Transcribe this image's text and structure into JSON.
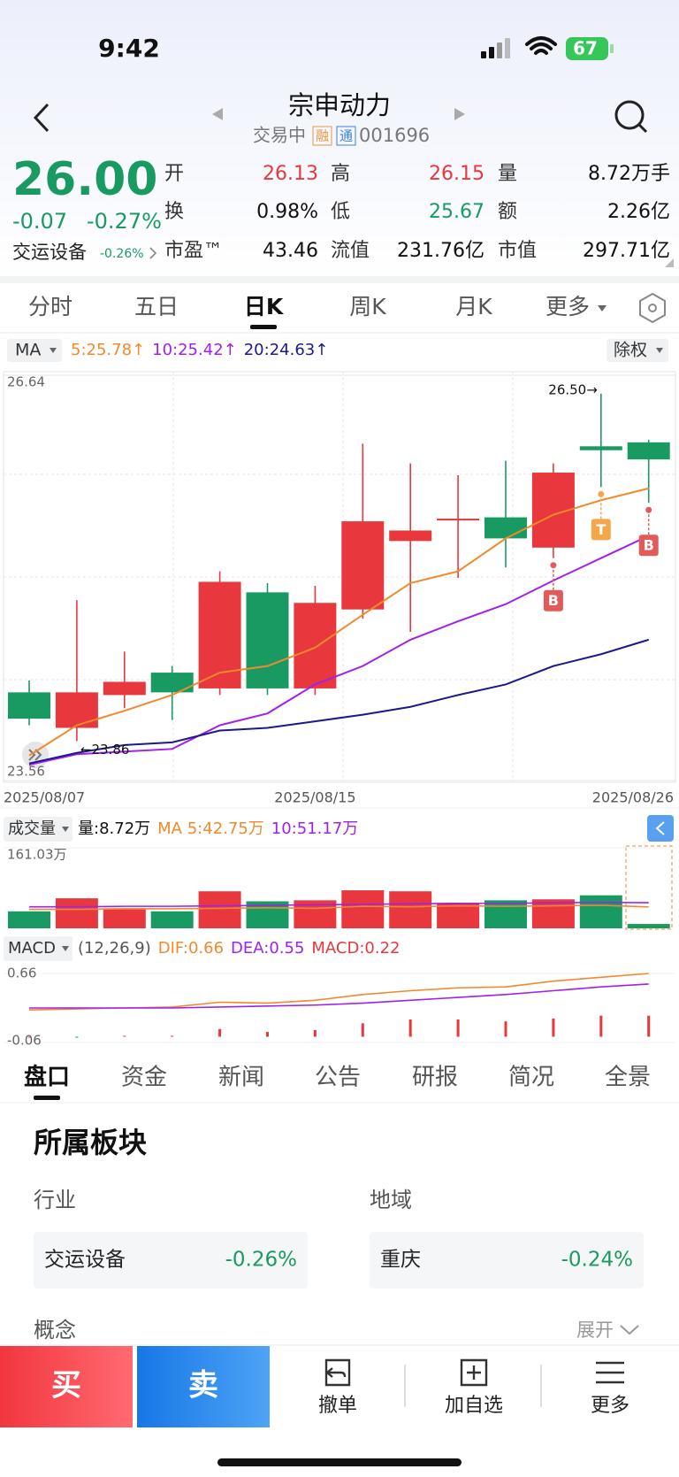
{
  "status_bar": {
    "time": "9:42",
    "battery": "67"
  },
  "header": {
    "title": "宗申动力",
    "state": "交易中",
    "tags": [
      "融",
      "通"
    ],
    "code": "001696"
  },
  "quote": {
    "price": "26.00",
    "change": "-0.07",
    "change_percent": "-0.27%",
    "sector": "交运设备",
    "sector_change": "-0.26%",
    "stats": [
      {
        "label": "开",
        "value": "26.13",
        "color": "#e8383d"
      },
      {
        "label": "高",
        "value": "26.15",
        "color": "#e8383d"
      },
      {
        "label": "量",
        "value": "8.72万手"
      },
      {
        "label": "换",
        "value": "0.98%"
      },
      {
        "label": "低",
        "value": "25.67",
        "color": "#1a9a63"
      },
      {
        "label": "额",
        "value": "2.26亿"
      },
      {
        "label": "市盈™",
        "value": "43.46"
      },
      {
        "label": "流值",
        "value": "231.76亿"
      },
      {
        "label": "市值",
        "value": "297.71亿"
      }
    ]
  },
  "chart_tabs": {
    "items": [
      "分时",
      "五日",
      "日K",
      "周K",
      "月K",
      "更多"
    ],
    "active": 2
  },
  "indicator_bar": {
    "selector": "MA",
    "values": [
      "5:25.78↑",
      "10:25.42↑",
      "20:24.63↑"
    ],
    "colors": [
      "#f08a2c",
      "#a020f0",
      "#1a1a8c"
    ],
    "adjust": "除权"
  },
  "chart_data": [
    {
      "type": "candlestick",
      "categories": [
        "2025/08/07",
        null,
        null,
        null,
        null,
        null,
        "2025/08/15",
        null,
        null,
        null,
        null,
        null,
        null,
        "2025/08/26"
      ],
      "open": [
        24.23,
        23.96,
        24.21,
        24.38,
        24.26,
        24.99,
        24.26,
        24.86,
        25.38,
        25.54,
        25.56,
        25.33,
        26.1,
        26.13
      ],
      "close": [
        24.03,
        24.23,
        24.31,
        24.23,
        25.07,
        24.26,
        24.91,
        25.53,
        25.46,
        25.55,
        25.4,
        25.9,
        26.07,
        26.0
      ],
      "high": [
        24.32,
        24.93,
        24.54,
        24.43,
        25.15,
        25.06,
        25.04,
        26.12,
        25.97,
        25.88,
        25.99,
        25.97,
        26.5,
        26.15
      ],
      "low": [
        23.98,
        23.86,
        24.11,
        24.02,
        24.21,
        24.21,
        24.21,
        24.79,
        24.69,
        25.1,
        25.18,
        25.25,
        25.79,
        25.67
      ],
      "up_color": "#e8383d",
      "down_color": "#1a9a63",
      "ylim": [
        23.56,
        26.64
      ],
      "yticks": [
        23.56,
        26.64
      ],
      "ma_series": [
        {
          "color": "#f08a2c",
          "values": [
            23.75,
            23.98,
            24.09,
            24.21,
            24.38,
            24.43,
            24.57,
            24.82,
            25.06,
            25.15,
            25.4,
            25.58,
            25.69,
            25.78
          ]
        },
        {
          "color": "#a020f0",
          "values": [
            23.68,
            23.76,
            23.78,
            23.8,
            23.98,
            24.07,
            24.29,
            24.43,
            24.63,
            24.77,
            24.9,
            25.08,
            25.25,
            25.42
          ]
        },
        {
          "color": "#1a1a8c",
          "values": [
            23.69,
            23.77,
            23.83,
            23.85,
            23.94,
            23.96,
            24.01,
            24.06,
            24.12,
            24.21,
            24.29,
            24.43,
            24.52,
            24.63
          ]
        }
      ],
      "annotations": [
        "26.50→",
        "←23.86"
      ],
      "signals": [
        {
          "label": "B",
          "index": 11
        },
        {
          "label": "T",
          "index": 12
        },
        {
          "label": "B",
          "index": 13
        }
      ]
    },
    {
      "type": "bar",
      "title": "成交量",
      "legend": [
        {
          "text": "量:8.72万",
          "color": "#111111"
        },
        {
          "text": "MA 5:42.75万",
          "color": "#f08a2c"
        },
        {
          "text": "10:51.17万",
          "color": "#a020f0"
        }
      ],
      "values": [
        34,
        60,
        40,
        34,
        74,
        54,
        56,
        76,
        74,
        50,
        56,
        58,
        66,
        8.72
      ],
      "ylim": [
        0,
        161.03
      ],
      "yticks": [
        {
          "value": 161.03,
          "label": "161.03万"
        }
      ],
      "ma_series": [
        {
          "color": "#f08a2c",
          "values": [
            38,
            38,
            39,
            39,
            40,
            41,
            40,
            44,
            43,
            45,
            44,
            45,
            46,
            42.75
          ]
        },
        {
          "color": "#a020f0",
          "values": [
            43,
            43,
            44,
            44,
            45,
            46,
            47,
            48,
            49,
            50,
            50,
            51,
            52,
            51.17
          ]
        }
      ]
    },
    {
      "type": "macd",
      "title": "MACD",
      "params": "(12,26,9)",
      "legend": [
        {
          "text": "DIF:0.66",
          "color": "#f08a2c"
        },
        {
          "text": "DEA:0.55",
          "color": "#a020f0"
        },
        {
          "text": "MACD:0.22",
          "color": "#e8383d"
        }
      ],
      "lines": [
        {
          "color": "#f08a2c",
          "values": [
            0.28,
            0.29,
            0.3,
            0.31,
            0.36,
            0.35,
            0.38,
            0.44,
            0.48,
            0.51,
            0.52,
            0.58,
            0.62,
            0.66
          ]
        },
        {
          "color": "#a020f0",
          "values": [
            0.3,
            0.3,
            0.3,
            0.3,
            0.31,
            0.32,
            0.33,
            0.35,
            0.38,
            0.41,
            0.44,
            0.48,
            0.52,
            0.55
          ]
        }
      ],
      "values": [
        0,
        -0.01,
        0.01,
        0.01,
        0.08,
        0.05,
        0.07,
        0.14,
        0.18,
        0.18,
        0.16,
        0.19,
        0.22,
        0.22
      ],
      "up_color": "#e8383d",
      "down_color": "#1a9a63",
      "ylim": [
        -0.06,
        0.66
      ],
      "yticks": [
        -0.06,
        0.66
      ]
    }
  ],
  "info_tabs": {
    "items": [
      "盘口",
      "资金",
      "新闻",
      "公告",
      "研报",
      "简况",
      "全景"
    ],
    "active": 0
  },
  "sector_panel": {
    "title": "所属板块",
    "groups": [
      {
        "label": "行业",
        "name": "交运设备",
        "change": "-0.26%"
      },
      {
        "label": "地域",
        "name": "重庆",
        "change": "-0.24%"
      }
    ],
    "concept": "概念",
    "expand": "展开"
  },
  "bottom_bar": {
    "buy": "买",
    "sell": "卖",
    "actions": [
      "撤单",
      "加自选",
      "更多"
    ]
  }
}
